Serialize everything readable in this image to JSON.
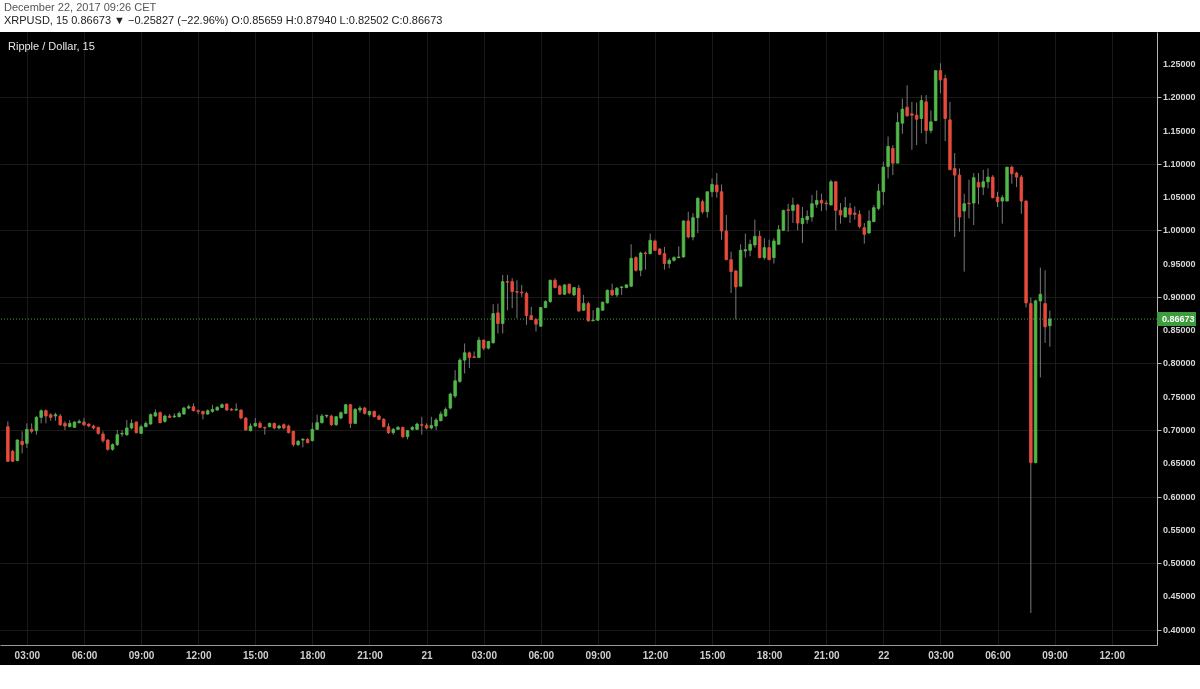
{
  "chart_data": {
    "type": "candlestick",
    "title": "Ripple / Dollar, 15",
    "annotations": [
      "December 22, 2017 09:26 CET",
      "XRPUSD, 15 0.86673 ▼ −0.25827 (−22.96%) O:0.85659 H:0.87940 L:0.82502 C:0.86673"
    ],
    "x": [
      "2017-12-20T02:00",
      "2017-12-20T02:15",
      "2017-12-20T02:30",
      "2017-12-20T02:45",
      "2017-12-20T03:00",
      "2017-12-20T03:15",
      "2017-12-20T03:30",
      "2017-12-20T03:45",
      "2017-12-20T04:00",
      "2017-12-20T04:15",
      "2017-12-20T04:30",
      "2017-12-20T04:45",
      "2017-12-20T05:00",
      "2017-12-20T05:15",
      "2017-12-20T05:30",
      "2017-12-20T05:45",
      "2017-12-20T06:00",
      "2017-12-20T06:15",
      "2017-12-20T06:30",
      "2017-12-20T06:45",
      "2017-12-20T07:00",
      "2017-12-20T07:15",
      "2017-12-20T07:30",
      "2017-12-20T07:45",
      "2017-12-20T08:00",
      "2017-12-20T08:15",
      "2017-12-20T08:30",
      "2017-12-20T08:45",
      "2017-12-20T09:00",
      "2017-12-20T09:15",
      "2017-12-20T09:30",
      "2017-12-20T09:45",
      "2017-12-20T10:00",
      "2017-12-20T10:15",
      "2017-12-20T10:30",
      "2017-12-20T10:45",
      "2017-12-20T11:00",
      "2017-12-20T11:15",
      "2017-12-20T11:30",
      "2017-12-20T11:45",
      "2017-12-20T12:00",
      "2017-12-20T12:15",
      "2017-12-20T12:30",
      "2017-12-20T12:45",
      "2017-12-20T13:00",
      "2017-12-20T13:15",
      "2017-12-20T13:30",
      "2017-12-20T13:45",
      "2017-12-20T14:00",
      "2017-12-20T14:15",
      "2017-12-20T14:30",
      "2017-12-20T14:45",
      "2017-12-20T15:00",
      "2017-12-20T15:15",
      "2017-12-20T15:30",
      "2017-12-20T15:45",
      "2017-12-20T16:00",
      "2017-12-20T16:15",
      "2017-12-20T16:30",
      "2017-12-20T16:45",
      "2017-12-20T17:00",
      "2017-12-20T17:15",
      "2017-12-20T17:30",
      "2017-12-20T17:45",
      "2017-12-20T18:00",
      "2017-12-20T18:15",
      "2017-12-20T18:30",
      "2017-12-20T18:45",
      "2017-12-20T19:00",
      "2017-12-20T19:15",
      "2017-12-20T19:30",
      "2017-12-20T19:45",
      "2017-12-20T20:00",
      "2017-12-20T20:15",
      "2017-12-20T20:30",
      "2017-12-20T20:45",
      "2017-12-20T21:00",
      "2017-12-20T21:15",
      "2017-12-20T21:30",
      "2017-12-20T21:45",
      "2017-12-20T22:00",
      "2017-12-20T22:15",
      "2017-12-20T22:30",
      "2017-12-20T22:45",
      "2017-12-20T23:00",
      "2017-12-20T23:15",
      "2017-12-20T23:30",
      "2017-12-20T23:45",
      "2017-12-21T00:00",
      "2017-12-21T00:15",
      "2017-12-21T00:30",
      "2017-12-21T00:45",
      "2017-12-21T01:00",
      "2017-12-21T01:15",
      "2017-12-21T01:30",
      "2017-12-21T01:45",
      "2017-12-21T02:00",
      "2017-12-21T02:15",
      "2017-12-21T02:30",
      "2017-12-21T02:45",
      "2017-12-21T03:00",
      "2017-12-21T03:15",
      "2017-12-21T03:30",
      "2017-12-21T03:45",
      "2017-12-21T04:00",
      "2017-12-21T04:15",
      "2017-12-21T04:30",
      "2017-12-21T04:45",
      "2017-12-21T05:00",
      "2017-12-21T05:15",
      "2017-12-21T05:30",
      "2017-12-21T05:45",
      "2017-12-21T06:00",
      "2017-12-21T06:15",
      "2017-12-21T06:30",
      "2017-12-21T06:45",
      "2017-12-21T07:00",
      "2017-12-21T07:15",
      "2017-12-21T07:30",
      "2017-12-21T07:45",
      "2017-12-21T08:00",
      "2017-12-21T08:15",
      "2017-12-21T08:30",
      "2017-12-21T08:45",
      "2017-12-21T09:00",
      "2017-12-21T09:15",
      "2017-12-21T09:30",
      "2017-12-21T09:45",
      "2017-12-21T10:00",
      "2017-12-21T10:15",
      "2017-12-21T10:30",
      "2017-12-21T10:45",
      "2017-12-21T11:00",
      "2017-12-21T11:15",
      "2017-12-21T11:30",
      "2017-12-21T11:45",
      "2017-12-21T12:00",
      "2017-12-21T12:15",
      "2017-12-21T12:30",
      "2017-12-21T12:45",
      "2017-12-21T13:00",
      "2017-12-21T13:15",
      "2017-12-21T13:30",
      "2017-12-21T13:45",
      "2017-12-21T14:00",
      "2017-12-21T14:15",
      "2017-12-21T14:30",
      "2017-12-21T14:45",
      "2017-12-21T15:00",
      "2017-12-21T15:15",
      "2017-12-21T15:30",
      "2017-12-21T15:45",
      "2017-12-21T16:00",
      "2017-12-21T16:15",
      "2017-12-21T16:30",
      "2017-12-21T16:45",
      "2017-12-21T17:00",
      "2017-12-21T17:15",
      "2017-12-21T17:30",
      "2017-12-21T17:45",
      "2017-12-21T18:00",
      "2017-12-21T18:15",
      "2017-12-21T18:30",
      "2017-12-21T18:45",
      "2017-12-21T19:00",
      "2017-12-21T19:15",
      "2017-12-21T19:30",
      "2017-12-21T19:45",
      "2017-12-21T20:00",
      "2017-12-21T20:15",
      "2017-12-21T20:30",
      "2017-12-21T20:45",
      "2017-12-21T21:00",
      "2017-12-21T21:15",
      "2017-12-21T21:30",
      "2017-12-21T21:45",
      "2017-12-21T22:00",
      "2017-12-21T22:15",
      "2017-12-21T22:30",
      "2017-12-21T22:45",
      "2017-12-21T23:00",
      "2017-12-21T23:15",
      "2017-12-21T23:30",
      "2017-12-21T23:45",
      "2017-12-22T00:00",
      "2017-12-22T00:15",
      "2017-12-22T00:30",
      "2017-12-22T00:45",
      "2017-12-22T01:00",
      "2017-12-22T01:15",
      "2017-12-22T01:30",
      "2017-12-22T01:45",
      "2017-12-22T02:00",
      "2017-12-22T02:15",
      "2017-12-22T02:30",
      "2017-12-22T02:45",
      "2017-12-22T03:00",
      "2017-12-22T03:15",
      "2017-12-22T03:30",
      "2017-12-22T03:45",
      "2017-12-22T04:00",
      "2017-12-22T04:15",
      "2017-12-22T04:30",
      "2017-12-22T04:45",
      "2017-12-22T05:00",
      "2017-12-22T05:15",
      "2017-12-22T05:30",
      "2017-12-22T05:45",
      "2017-12-22T06:00",
      "2017-12-22T06:15",
      "2017-12-22T06:30",
      "2017-12-22T06:45",
      "2017-12-22T07:00",
      "2017-12-22T07:15",
      "2017-12-22T07:30",
      "2017-12-22T07:45",
      "2017-12-22T08:00",
      "2017-12-22T08:15",
      "2017-12-22T08:30",
      "2017-12-22T08:45"
    ],
    "ohlc": [
      [
        0.705,
        0.713,
        0.652,
        0.653
      ],
      [
        0.668,
        0.67,
        0.652,
        0.653
      ],
      [
        0.654,
        0.686,
        0.653,
        0.685
      ],
      [
        0.683,
        0.698,
        0.665,
        0.678
      ],
      [
        0.68,
        0.71,
        0.673,
        0.701
      ],
      [
        0.701,
        0.71,
        0.695,
        0.698
      ],
      [
        0.699,
        0.721,
        0.693,
        0.719
      ],
      [
        0.719,
        0.731,
        0.71,
        0.729
      ],
      [
        0.729,
        0.731,
        0.71,
        0.721
      ],
      [
        0.723,
        0.725,
        0.714,
        0.719
      ],
      [
        0.721,
        0.726,
        0.714,
        0.723
      ],
      [
        0.721,
        0.724,
        0.706,
        0.708
      ],
      [
        0.71,
        0.713,
        0.7,
        0.706
      ],
      [
        0.705,
        0.715,
        0.704,
        0.71
      ],
      [
        0.704,
        0.713,
        0.703,
        0.712
      ],
      [
        0.711,
        0.716,
        0.71,
        0.713
      ],
      [
        0.712,
        0.718,
        0.706,
        0.708
      ],
      [
        0.709,
        0.71,
        0.704,
        0.706
      ],
      [
        0.706,
        0.708,
        0.701,
        0.703
      ],
      [
        0.704,
        0.705,
        0.693,
        0.695
      ],
      [
        0.694,
        0.698,
        0.681,
        0.684
      ],
      [
        0.685,
        0.686,
        0.669,
        0.671
      ],
      [
        0.671,
        0.68,
        0.669,
        0.678
      ],
      [
        0.678,
        0.7,
        0.676,
        0.693
      ],
      [
        0.694,
        0.7,
        0.69,
        0.695
      ],
      [
        0.693,
        0.715,
        0.691,
        0.703
      ],
      [
        0.703,
        0.716,
        0.701,
        0.71
      ],
      [
        0.712,
        0.713,
        0.695,
        0.696
      ],
      [
        0.695,
        0.708,
        0.694,
        0.705
      ],
      [
        0.705,
        0.713,
        0.704,
        0.71
      ],
      [
        0.709,
        0.725,
        0.708,
        0.723
      ],
      [
        0.721,
        0.731,
        0.72,
        0.726
      ],
      [
        0.726,
        0.728,
        0.71,
        0.711
      ],
      [
        0.713,
        0.723,
        0.711,
        0.721
      ],
      [
        0.721,
        0.724,
        0.718,
        0.719
      ],
      [
        0.72,
        0.725,
        0.718,
        0.721
      ],
      [
        0.72,
        0.728,
        0.719,
        0.725
      ],
      [
        0.724,
        0.735,
        0.723,
        0.733
      ],
      [
        0.733,
        0.738,
        0.731,
        0.735
      ],
      [
        0.735,
        0.74,
        0.728,
        0.729
      ],
      [
        0.729,
        0.731,
        0.724,
        0.728
      ],
      [
        0.728,
        0.729,
        0.716,
        0.724
      ],
      [
        0.724,
        0.731,
        0.723,
        0.729
      ],
      [
        0.728,
        0.738,
        0.726,
        0.731
      ],
      [
        0.73,
        0.736,
        0.729,
        0.734
      ],
      [
        0.734,
        0.74,
        0.733,
        0.738
      ],
      [
        0.739,
        0.74,
        0.729,
        0.73
      ],
      [
        0.731,
        0.733,
        0.729,
        0.73
      ],
      [
        0.73,
        0.74,
        0.729,
        0.731
      ],
      [
        0.73,
        0.731,
        0.716,
        0.718
      ],
      [
        0.718,
        0.719,
        0.699,
        0.7
      ],
      [
        0.699,
        0.71,
        0.698,
        0.706
      ],
      [
        0.706,
        0.718,
        0.705,
        0.71
      ],
      [
        0.71,
        0.713,
        0.703,
        0.704
      ],
      [
        0.704,
        0.705,
        0.693,
        0.703
      ],
      [
        0.705,
        0.711,
        0.704,
        0.71
      ],
      [
        0.71,
        0.711,
        0.701,
        0.703
      ],
      [
        0.703,
        0.708,
        0.701,
        0.706
      ],
      [
        0.708,
        0.71,
        0.701,
        0.703
      ],
      [
        0.706,
        0.708,
        0.695,
        0.696
      ],
      [
        0.698,
        0.699,
        0.675,
        0.678
      ],
      [
        0.678,
        0.685,
        0.676,
        0.683
      ],
      [
        0.685,
        0.688,
        0.674,
        0.686
      ],
      [
        0.686,
        0.688,
        0.68,
        0.681
      ],
      [
        0.684,
        0.711,
        0.683,
        0.701
      ],
      [
        0.701,
        0.723,
        0.7,
        0.711
      ],
      [
        0.711,
        0.724,
        0.71,
        0.721
      ],
      [
        0.721,
        0.723,
        0.718,
        0.722
      ],
      [
        0.721,
        0.723,
        0.706,
        0.708
      ],
      [
        0.708,
        0.721,
        0.706,
        0.72
      ],
      [
        0.718,
        0.728,
        0.716,
        0.726
      ],
      [
        0.725,
        0.739,
        0.724,
        0.738
      ],
      [
        0.738,
        0.739,
        0.703,
        0.71
      ],
      [
        0.71,
        0.733,
        0.709,
        0.731
      ],
      [
        0.73,
        0.736,
        0.726,
        0.733
      ],
      [
        0.733,
        0.735,
        0.723,
        0.725
      ],
      [
        0.723,
        0.729,
        0.72,
        0.728
      ],
      [
        0.728,
        0.729,
        0.719,
        0.72
      ],
      [
        0.721,
        0.723,
        0.715,
        0.716
      ],
      [
        0.716,
        0.718,
        0.704,
        0.705
      ],
      [
        0.705,
        0.71,
        0.694,
        0.696
      ],
      [
        0.696,
        0.703,
        0.693,
        0.701
      ],
      [
        0.701,
        0.706,
        0.7,
        0.704
      ],
      [
        0.704,
        0.705,
        0.688,
        0.69
      ],
      [
        0.69,
        0.7,
        0.686,
        0.699
      ],
      [
        0.701,
        0.706,
        0.699,
        0.704
      ],
      [
        0.701,
        0.711,
        0.7,
        0.709
      ],
      [
        0.708,
        0.72,
        0.693,
        0.707
      ],
      [
        0.707,
        0.71,
        0.701,
        0.703
      ],
      [
        0.703,
        0.72,
        0.701,
        0.707
      ],
      [
        0.706,
        0.718,
        0.7,
        0.715
      ],
      [
        0.714,
        0.728,
        0.713,
        0.724
      ],
      [
        0.721,
        0.734,
        0.72,
        0.731
      ],
      [
        0.733,
        0.756,
        0.731,
        0.754
      ],
      [
        0.751,
        0.79,
        0.748,
        0.774
      ],
      [
        0.773,
        0.808,
        0.771,
        0.805
      ],
      [
        0.805,
        0.83,
        0.785,
        0.816
      ],
      [
        0.816,
        0.818,
        0.793,
        0.809
      ],
      [
        0.81,
        0.818,
        0.808,
        0.809
      ],
      [
        0.809,
        0.84,
        0.808,
        0.835
      ],
      [
        0.835,
        0.836,
        0.82,
        0.823
      ],
      [
        0.823,
        0.834,
        0.821,
        0.833
      ],
      [
        0.831,
        0.889,
        0.83,
        0.875
      ],
      [
        0.876,
        0.89,
        0.845,
        0.86
      ],
      [
        0.86,
        0.933,
        0.845,
        0.923
      ],
      [
        0.923,
        0.933,
        0.88,
        0.922
      ],
      [
        0.923,
        0.928,
        0.883,
        0.908
      ],
      [
        0.908,
        0.925,
        0.868,
        0.907
      ],
      [
        0.907,
        0.918,
        0.9,
        0.906
      ],
      [
        0.905,
        0.908,
        0.858,
        0.872
      ],
      [
        0.872,
        0.885,
        0.865,
        0.866
      ],
      [
        0.866,
        0.868,
        0.848,
        0.859
      ],
      [
        0.856,
        0.885,
        0.855,
        0.884
      ],
      [
        0.884,
        0.895,
        0.883,
        0.893
      ],
      [
        0.893,
        0.926,
        0.891,
        0.925
      ],
      [
        0.925,
        0.928,
        0.913,
        0.914
      ],
      [
        0.916,
        0.918,
        0.903,
        0.904
      ],
      [
        0.904,
        0.919,
        0.903,
        0.918
      ],
      [
        0.919,
        0.92,
        0.904,
        0.906
      ],
      [
        0.903,
        0.915,
        0.901,
        0.914
      ],
      [
        0.913,
        0.918,
        0.877,
        0.879
      ],
      [
        0.88,
        0.903,
        0.879,
        0.89
      ],
      [
        0.89,
        0.893,
        0.863,
        0.864
      ],
      [
        0.864,
        0.88,
        0.864,
        0.865
      ],
      [
        0.865,
        0.884,
        0.864,
        0.883
      ],
      [
        0.88,
        0.893,
        0.879,
        0.892
      ],
      [
        0.891,
        0.911,
        0.89,
        0.91
      ],
      [
        0.91,
        0.92,
        0.901,
        0.903
      ],
      [
        0.903,
        0.915,
        0.9,
        0.913
      ],
      [
        0.914,
        0.916,
        0.903,
        0.915
      ],
      [
        0.914,
        0.919,
        0.913,
        0.918
      ],
      [
        0.916,
        0.979,
        0.915,
        0.958
      ],
      [
        0.959,
        0.961,
        0.938,
        0.94
      ],
      [
        0.94,
        0.968,
        0.931,
        0.966
      ],
      [
        0.966,
        0.968,
        0.941,
        0.965
      ],
      [
        0.965,
        0.995,
        0.964,
        0.985
      ],
      [
        0.984,
        0.986,
        0.969,
        0.97
      ],
      [
        0.972,
        0.973,
        0.963,
        0.964
      ],
      [
        0.965,
        0.975,
        0.941,
        0.95
      ],
      [
        0.95,
        0.958,
        0.943,
        0.955
      ],
      [
        0.955,
        0.961,
        0.953,
        0.959
      ],
      [
        0.959,
        0.976,
        0.958,
        0.96
      ],
      [
        0.96,
        1.015,
        0.959,
        1.014
      ],
      [
        1.014,
        1.028,
        0.988,
        0.99
      ],
      [
        0.99,
        1.026,
        0.985,
        1.019
      ],
      [
        1.019,
        1.05,
        0.996,
        1.048
      ],
      [
        1.043,
        1.046,
        1.025,
        1.028
      ],
      [
        1.028,
        1.058,
        1.019,
        1.058
      ],
      [
        1.058,
        1.078,
        1.05,
        1.069
      ],
      [
        1.068,
        1.086,
        1.049,
        1.058
      ],
      [
        1.058,
        1.069,
        0.986,
        0.999
      ],
      [
        0.999,
        1.023,
        0.955,
        0.956
      ],
      [
        0.956,
        0.968,
        0.906,
        0.938
      ],
      [
        0.939,
        0.94,
        0.866,
        0.915
      ],
      [
        0.916,
        0.979,
        0.916,
        0.97
      ],
      [
        0.969,
        0.995,
        0.959,
        0.971
      ],
      [
        0.97,
        0.986,
        0.961,
        0.979
      ],
      [
        0.978,
        1.016,
        0.974,
        0.991
      ],
      [
        0.991,
        0.999,
        0.958,
        0.959
      ],
      [
        0.959,
        0.988,
        0.956,
        0.974
      ],
      [
        0.974,
        0.986,
        0.955,
        0.956
      ],
      [
        0.959,
        0.988,
        0.95,
        0.984
      ],
      [
        0.979,
        1.008,
        0.979,
        1.001
      ],
      [
        1.0,
        1.031,
        0.999,
        1.03
      ],
      [
        1.031,
        1.04,
        0.998,
        1.03
      ],
      [
        1.03,
        1.049,
        1.011,
        1.038
      ],
      [
        1.038,
        1.04,
        1.0,
        1.011
      ],
      [
        1.01,
        1.035,
        0.981,
        1.018
      ],
      [
        1.016,
        1.03,
        1.01,
        1.021
      ],
      [
        1.02,
        1.053,
        1.013,
        1.04
      ],
      [
        1.039,
        1.06,
        1.034,
        1.045
      ],
      [
        1.045,
        1.055,
        1.029,
        1.041
      ],
      [
        1.041,
        1.045,
        1.03,
        1.04
      ],
      [
        1.038,
        1.076,
        1.038,
        1.073
      ],
      [
        1.073,
        1.074,
        1.0,
        1.03
      ],
      [
        1.03,
        1.041,
        1.01,
        1.023
      ],
      [
        1.02,
        1.05,
        1.02,
        1.034
      ],
      [
        1.033,
        1.041,
        1.011,
        1.024
      ],
      [
        1.026,
        1.036,
        1.016,
        1.024
      ],
      [
        1.024,
        1.03,
        1.003,
        1.006
      ],
      [
        1.004,
        1.011,
        0.98,
        0.994
      ],
      [
        0.996,
        1.03,
        0.995,
        1.014
      ],
      [
        1.013,
        1.038,
        1.013,
        1.034
      ],
      [
        1.033,
        1.07,
        1.03,
        1.059
      ],
      [
        1.058,
        1.103,
        1.038,
        1.095
      ],
      [
        1.096,
        1.141,
        1.078,
        1.126
      ],
      [
        1.123,
        1.128,
        1.083,
        1.101
      ],
      [
        1.101,
        1.177,
        1.101,
        1.162
      ],
      [
        1.161,
        1.198,
        1.145,
        1.182
      ],
      [
        1.185,
        1.218,
        1.171,
        1.172
      ],
      [
        1.175,
        1.193,
        1.121,
        1.173
      ],
      [
        1.173,
        1.192,
        1.128,
        1.167
      ],
      [
        1.168,
        1.203,
        1.146,
        1.195
      ],
      [
        1.193,
        1.203,
        1.13,
        1.15
      ],
      [
        1.15,
        1.18,
        1.146,
        1.163
      ],
      [
        1.165,
        1.24,
        1.164,
        1.24
      ],
      [
        1.24,
        1.251,
        1.206,
        1.226
      ],
      [
        1.228,
        1.234,
        1.134,
        1.168
      ],
      [
        1.166,
        1.193,
        1.091,
        1.091
      ],
      [
        1.093,
        1.116,
        0.99,
        1.083
      ],
      [
        1.083,
        1.093,
        0.998,
        1.02
      ],
      [
        1.029,
        1.055,
        0.938,
        1.04
      ],
      [
        1.041,
        1.076,
        1.018,
        1.04
      ],
      [
        1.041,
        1.086,
        1.008,
        1.079
      ],
      [
        1.072,
        1.086,
        1.039,
        1.065
      ],
      [
        1.065,
        1.091,
        1.053,
        1.073
      ],
      [
        1.073,
        1.093,
        1.063,
        1.08
      ],
      [
        1.08,
        1.083,
        1.048,
        1.049
      ],
      [
        1.05,
        1.058,
        1.035,
        1.043
      ],
      [
        1.044,
        1.053,
        1.01,
        1.049
      ],
      [
        1.044,
        1.095,
        1.044,
        1.095
      ],
      [
        1.095,
        1.097,
        1.07,
        1.085
      ],
      [
        1.086,
        1.088,
        1.065,
        1.08
      ],
      [
        1.08,
        1.083,
        1.025,
        1.044
      ],
      [
        1.044,
        1.045,
        0.884,
        0.891
      ],
      [
        0.89,
        0.899,
        0.425,
        0.651
      ],
      [
        0.651,
        0.896,
        0.65,
        0.894
      ],
      [
        0.894,
        0.944,
        0.779,
        0.904
      ],
      [
        0.89,
        0.94,
        0.831,
        0.855
      ],
      [
        0.85659,
        0.8794,
        0.82502,
        0.86673
      ]
    ],
    "colors": [
      "#e84b3c",
      "#e84b3c",
      "#53b84a",
      "#e84b3c",
      "#53b84a",
      "#e84b3c",
      "#53b84a",
      "#53b84a",
      "#e84b3c",
      "#e84b3c",
      "#53b84a",
      "#e84b3c",
      "#e84b3c",
      "#53b84a",
      "#53b84a",
      "#53b84a",
      "#e84b3c",
      "#e84b3c",
      "#e84b3c",
      "#e84b3c",
      "#e84b3c",
      "#e84b3c",
      "#53b84a",
      "#53b84a",
      "#53b84a",
      "#53b84a",
      "#53b84a",
      "#e84b3c",
      "#53b84a",
      "#53b84a",
      "#53b84a",
      "#53b84a",
      "#e84b3c",
      "#53b84a",
      "#e84b3c",
      "#53b84a",
      "#53b84a",
      "#53b84a",
      "#53b84a",
      "#e84b3c",
      "#e84b3c",
      "#e84b3c",
      "#53b84a",
      "#53b84a",
      "#53b84a",
      "#53b84a",
      "#e84b3c",
      "#e84b3c",
      "#53b84a",
      "#e84b3c",
      "#e84b3c",
      "#53b84a",
      "#53b84a",
      "#e84b3c",
      "#e84b3c",
      "#53b84a",
      "#e84b3c",
      "#53b84a",
      "#e84b3c",
      "#e84b3c",
      "#e84b3c",
      "#53b84a",
      "#53b84a",
      "#e84b3c",
      "#53b84a",
      "#53b84a",
      "#53b84a",
      "#53b84a",
      "#e84b3c",
      "#53b84a",
      "#53b84a",
      "#53b84a",
      "#e84b3c",
      "#53b84a",
      "#53b84a",
      "#e84b3c",
      "#53b84a",
      "#e84b3c",
      "#e84b3c",
      "#e84b3c",
      "#e84b3c",
      "#53b84a",
      "#53b84a",
      "#e84b3c",
      "#53b84a",
      "#53b84a",
      "#53b84a",
      "#e84b3c",
      "#e84b3c",
      "#53b84a",
      "#53b84a",
      "#53b84a",
      "#53b84a",
      "#53b84a",
      "#53b84a",
      "#53b84a",
      "#53b84a",
      "#e84b3c",
      "#e84b3c",
      "#53b84a",
      "#e84b3c",
      "#53b84a",
      "#53b84a",
      "#e84b3c",
      "#53b84a",
      "#e84b3c",
      "#e84b3c",
      "#e84b3c",
      "#e84b3c",
      "#e84b3c",
      "#e84b3c",
      "#e84b3c",
      "#53b84a",
      "#53b84a",
      "#53b84a",
      "#e84b3c",
      "#e84b3c",
      "#53b84a",
      "#e84b3c",
      "#53b84a",
      "#e84b3c",
      "#53b84a",
      "#e84b3c",
      "#53b84a",
      "#53b84a",
      "#53b84a",
      "#53b84a",
      "#e84b3c",
      "#53b84a",
      "#53b84a",
      "#53b84a",
      "#53b84a",
      "#e84b3c",
      "#53b84a",
      "#e84b3c",
      "#53b84a",
      "#e84b3c",
      "#e84b3c",
      "#e84b3c",
      "#53b84a",
      "#53b84a",
      "#53b84a",
      "#53b84a",
      "#e84b3c",
      "#53b84a",
      "#53b84a",
      "#e84b3c",
      "#53b84a",
      "#53b84a",
      "#e84b3c",
      "#e84b3c",
      "#e84b3c",
      "#e84b3c",
      "#e84b3c",
      "#53b84a",
      "#53b84a",
      "#53b84a",
      "#53b84a",
      "#e84b3c",
      "#53b84a",
      "#e84b3c",
      "#53b84a",
      "#53b84a",
      "#53b84a",
      "#e84b3c",
      "#53b84a",
      "#e84b3c",
      "#53b84a",
      "#53b84a",
      "#53b84a",
      "#53b84a",
      "#e84b3c",
      "#e84b3c",
      "#53b84a",
      "#e84b3c",
      "#e84b3c",
      "#53b84a",
      "#e84b3c",
      "#e84b3c",
      "#e84b3c",
      "#e84b3c",
      "#53b84a",
      "#53b84a",
      "#53b84a",
      "#53b84a",
      "#53b84a",
      "#e84b3c",
      "#53b84a",
      "#53b84a",
      "#e84b3c",
      "#e84b3c",
      "#e84b3c",
      "#53b84a",
      "#e84b3c",
      "#53b84a",
      "#53b84a",
      "#e84b3c",
      "#e84b3c",
      "#e84b3c",
      "#e84b3c",
      "#e84b3c",
      "#53b84a",
      "#e84b3c",
      "#53b84a",
      "#e84b3c",
      "#53b84a",
      "#53b84a",
      "#e84b3c",
      "#e84b3c",
      "#53b84a",
      "#53b84a",
      "#e84b3c",
      "#e84b3c",
      "#e84b3c",
      "#e84b3c",
      "#e84b3c",
      "#53b84a",
      "#53b84a",
      "#e84b3c",
      "#53b84a"
    ],
    "xlim": [
      "2017-12-20T01:51",
      "2017-12-22T14:07"
    ],
    "xticks": [
      {
        "value": "2017-12-20T03:00",
        "label": "03:00"
      },
      {
        "value": "2017-12-20T06:00",
        "label": "06:00"
      },
      {
        "value": "2017-12-20T09:00",
        "label": "09:00"
      },
      {
        "value": "2017-12-20T12:00",
        "label": "12:00"
      },
      {
        "value": "2017-12-20T15:00",
        "label": "15:00"
      },
      {
        "value": "2017-12-20T18:00",
        "label": "18:00"
      },
      {
        "value": "2017-12-20T21:00",
        "label": "21:00"
      },
      {
        "value": "2017-12-21T00:00",
        "label": "21"
      },
      {
        "value": "2017-12-21T03:00",
        "label": "03:00"
      },
      {
        "value": "2017-12-21T06:00",
        "label": "06:00"
      },
      {
        "value": "2017-12-21T09:00",
        "label": "09:00"
      },
      {
        "value": "2017-12-21T12:00",
        "label": "12:00"
      },
      {
        "value": "2017-12-21T15:00",
        "label": "15:00"
      },
      {
        "value": "2017-12-21T18:00",
        "label": "18:00"
      },
      {
        "value": "2017-12-21T21:00",
        "label": "21:00"
      },
      {
        "value": "2017-12-22T00:00",
        "label": "22"
      },
      {
        "value": "2017-12-22T03:00",
        "label": "03:00"
      },
      {
        "value": "2017-12-22T06:00",
        "label": "06:00"
      },
      {
        "value": "2017-12-22T09:00",
        "label": "09:00"
      },
      {
        "value": "2017-12-22T12:00",
        "label": "12:00"
      }
    ],
    "ylim": [
      0.377,
      1.298
    ],
    "yticks": [
      {
        "value": 0.4,
        "label": "0.40000"
      },
      {
        "value": 0.45,
        "label": "0.45000"
      },
      {
        "value": 0.5,
        "label": "0.50000"
      },
      {
        "value": 0.55,
        "label": "0.55000"
      },
      {
        "value": 0.6,
        "label": "0.60000"
      },
      {
        "value": 0.65,
        "label": "0.65000"
      },
      {
        "value": 0.7,
        "label": "0.70000"
      },
      {
        "value": 0.75,
        "label": "0.75000"
      },
      {
        "value": 0.8,
        "label": "0.80000"
      },
      {
        "value": 0.85,
        "label": "0.85000"
      },
      {
        "value": 0.9,
        "label": "0.90000"
      },
      {
        "value": 0.95,
        "label": "0.95000"
      },
      {
        "value": 1.0,
        "label": "1.00000"
      },
      {
        "value": 1.05,
        "label": "1.05000"
      },
      {
        "value": 1.1,
        "label": "1.10000"
      },
      {
        "value": 1.15,
        "label": "1.15000"
      },
      {
        "value": 1.2,
        "label": "1.20000"
      },
      {
        "value": 1.25,
        "label": "1.25000"
      }
    ],
    "grid": true,
    "ref_lines": [
      {
        "axis": "y",
        "value": 0.86673,
        "label": "0.86673",
        "color": "#3d9c3d",
        "line_style": "dotted"
      }
    ]
  }
}
